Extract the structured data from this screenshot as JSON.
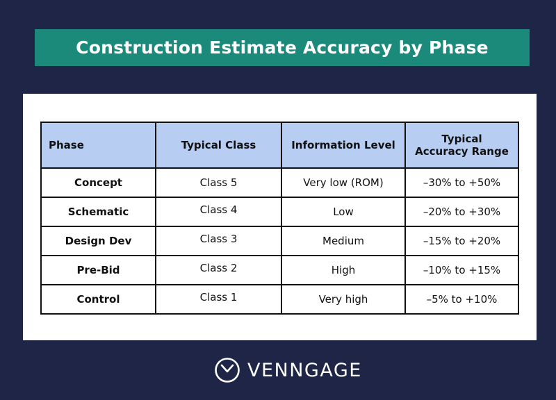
{
  "title": "Construction Estimate Accuracy by Phase",
  "table": {
    "headers": {
      "phase": "Phase",
      "typical_class": "Typical Class",
      "information_level": "Information Level",
      "accuracy_line1": "Typical",
      "accuracy_line2": "Accuracy Range"
    },
    "rows": [
      {
        "phase": "Concept",
        "class": "Class 5",
        "info": "Very low (ROM)",
        "range": "–30% to +50%"
      },
      {
        "phase": "Schematic",
        "class": "Class 4",
        "info": "Low",
        "range": "–20% to +30%"
      },
      {
        "phase": "Design Dev",
        "class": "Class 3",
        "info": "Medium",
        "range": "–15% to +20%"
      },
      {
        "phase": "Pre-Bid",
        "class": "Class 2",
        "info": "High",
        "range": "–10% to +15%"
      },
      {
        "phase": "Control",
        "class": "Class 1",
        "info": "Very high",
        "range": "–5% to +10%"
      }
    ]
  },
  "brand": {
    "name": "VENNGAGE",
    "icon": "venngage-logo-icon"
  }
}
